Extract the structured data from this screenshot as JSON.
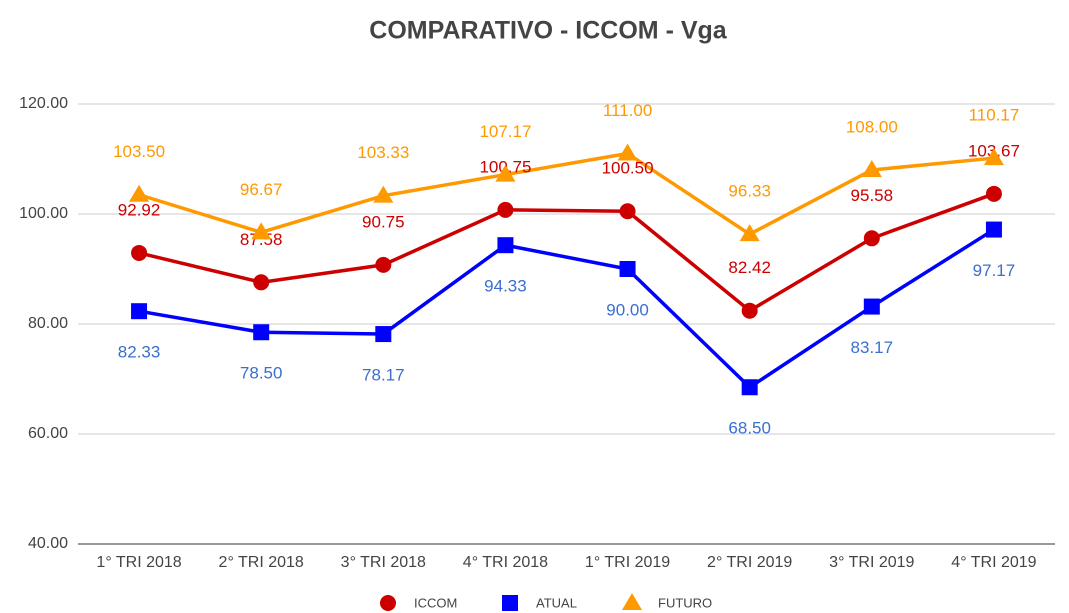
{
  "chart_data": {
    "type": "line",
    "title": "COMPARATIVO - ICCOM - Vga",
    "categories": [
      "1° TRI 2018",
      "2° TRI 2018",
      "3° TRI 2018",
      "4° TRI 2018",
      "1° TRI 2019",
      "2° TRI 2019",
      "3° TRI 2019",
      "4° TRI 2019"
    ],
    "series": [
      {
        "name": "ICCOM",
        "color": "#cc0000",
        "marker": "circle",
        "values": [
          92.92,
          87.58,
          90.75,
          100.75,
          100.5,
          82.42,
          95.58,
          103.67
        ],
        "value_labels": [
          "92.92",
          "87.58",
          "90.75",
          "100.75",
          "100.50",
          "82.42",
          "95.58",
          "103.67"
        ]
      },
      {
        "name": "ATUAL",
        "color": "#0000ff",
        "marker": "square",
        "values": [
          82.33,
          78.5,
          78.17,
          94.33,
          90,
          68.5,
          83.17,
          97.17
        ],
        "value_labels": [
          "82.33",
          "78.50",
          "78.17",
          "94.33",
          "90.00",
          "68.50",
          "83.17",
          "97.17"
        ]
      },
      {
        "name": "FUTURO",
        "color": "#ff9900",
        "marker": "triangle",
        "values": [
          103.5,
          96.67,
          103.33,
          107.17,
          111,
          96.33,
          108,
          110.17
        ],
        "value_labels": [
          "103.50",
          "96.67",
          "103.33",
          "107.17",
          "111.00",
          "96.33",
          "108.00",
          "110.17"
        ]
      }
    ],
    "ylim": [
      40,
      120
    ],
    "yticks": [
      {
        "value": 40,
        "label": "40.00"
      },
      {
        "value": 60,
        "label": "60.00"
      },
      {
        "value": 80,
        "label": "80.00"
      },
      {
        "value": 100,
        "label": "100.00"
      },
      {
        "value": 120,
        "label": "120.00"
      }
    ],
    "grid": true,
    "legend": "bottom"
  }
}
